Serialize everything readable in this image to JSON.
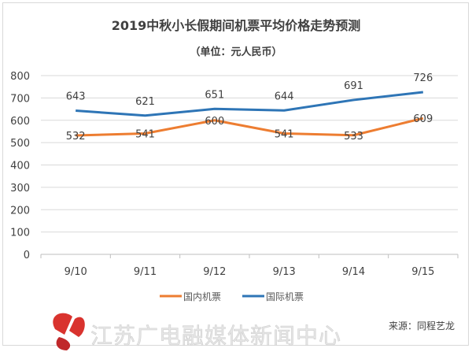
{
  "chart_data": {
    "type": "line",
    "title": "2019中秋小长假期间机票平均价格走势预测",
    "subtitle": "（单位：元人民币）",
    "xlabel": "",
    "ylabel": "",
    "categories": [
      "9/10",
      "9/11",
      "9/12",
      "9/13",
      "9/14",
      "9/15"
    ],
    "ylim": [
      0,
      800
    ],
    "yticks": [
      0,
      100,
      200,
      300,
      400,
      500,
      600,
      700,
      800
    ],
    "grid": true,
    "legend_position": "bottom",
    "series": [
      {
        "name": "国内机票",
        "color": "#ed7d31",
        "values": [
          532,
          541,
          600,
          541,
          533,
          609
        ]
      },
      {
        "name": "国际机票",
        "color": "#2e75b6",
        "values": [
          643,
          621,
          651,
          644,
          691,
          726
        ]
      }
    ]
  },
  "source": "来源：同程艺龙",
  "watermark": {
    "text": "江苏广电融媒体新闻中心",
    "logo_color": "#d9332e"
  }
}
